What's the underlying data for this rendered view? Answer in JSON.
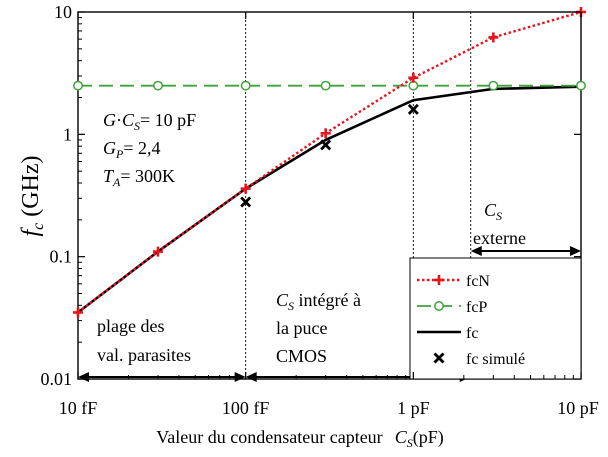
{
  "chart_data": {
    "type": "line",
    "x_scale": "log",
    "y_scale": "log",
    "xlim_pF": [
      0.01,
      10
    ],
    "ylim_GHz": [
      0.01,
      10
    ],
    "x_ticks": [
      {
        "value": 0.01,
        "label": "10 fF"
      },
      {
        "value": 0.1,
        "label": "100 fF"
      },
      {
        "value": 1,
        "label": "1 pF"
      },
      {
        "value": 10,
        "label": "10 pF"
      }
    ],
    "y_ticks": [
      {
        "value": 0.01,
        "label": "0.01"
      },
      {
        "value": 0.1,
        "label": "0.1"
      },
      {
        "value": 1,
        "label": "1"
      },
      {
        "value": 10,
        "label": "10"
      }
    ],
    "xlabel": "Valeur du condensateur capteur",
    "xlabel_symbol": "C",
    "xlabel_sub": "S",
    "xlabel_unit": "(pF)",
    "ylabel_symbol": "f",
    "ylabel_sub": "c",
    "ylabel_unit": "(GHz)",
    "series": [
      {
        "name": "fcN",
        "color": "#e8141c",
        "style": "dotted",
        "marker": "plus",
        "x": [
          0.01,
          0.03,
          0.1,
          0.3,
          1,
          3,
          10
        ],
        "y": [
          0.035,
          0.11,
          0.36,
          1.02,
          2.9,
          6.2,
          10.0
        ]
      },
      {
        "name": "fcP",
        "color": "#3fa23a",
        "style": "dashed",
        "marker": "circle",
        "x": [
          0.01,
          0.03,
          0.1,
          0.3,
          1,
          3,
          10
        ],
        "y": [
          2.5,
          2.5,
          2.5,
          2.5,
          2.5,
          2.5,
          2.5
        ]
      },
      {
        "name": "fc",
        "color": "#000000",
        "style": "solid",
        "marker": "none",
        "x": [
          0.01,
          0.03,
          0.1,
          0.3,
          1,
          3,
          10
        ],
        "y": [
          0.035,
          0.11,
          0.36,
          0.9,
          1.9,
          2.35,
          2.45
        ]
      },
      {
        "name": "fc  simulé",
        "color": "#000000",
        "style": "none",
        "marker": "x",
        "x": [
          0.1,
          0.3,
          1
        ],
        "y": [
          0.28,
          0.82,
          1.6
        ]
      }
    ],
    "vertical_lines_pF": [
      0.1,
      1,
      2.2
    ],
    "ranges": [
      {
        "label_lines": [
          "plage des",
          "val. parasites"
        ],
        "from": 0.01,
        "to": 0.1
      },
      {
        "label_lines": [
          "intégré à",
          "la puce",
          "CMOS"
        ],
        "label_symbol": "C",
        "label_sub": "S",
        "from": 0.1,
        "to": 2.2
      },
      {
        "label_lines": [
          "externe"
        ],
        "label_symbol": "C",
        "label_sub": "S",
        "from": 2.2,
        "to": 10
      }
    ],
    "annotation": {
      "line1": {
        "sym1": "G",
        "dot": "·",
        "sym2": "C",
        "sub2": "S",
        "value": "= 10 pF"
      },
      "line2": {
        "sym": "G",
        "sub": "P",
        "value": "= 2,4"
      },
      "line3": {
        "sym": "T",
        "sub": "A",
        "value": "= 300K"
      }
    },
    "legend_placement": "bottom-right"
  }
}
